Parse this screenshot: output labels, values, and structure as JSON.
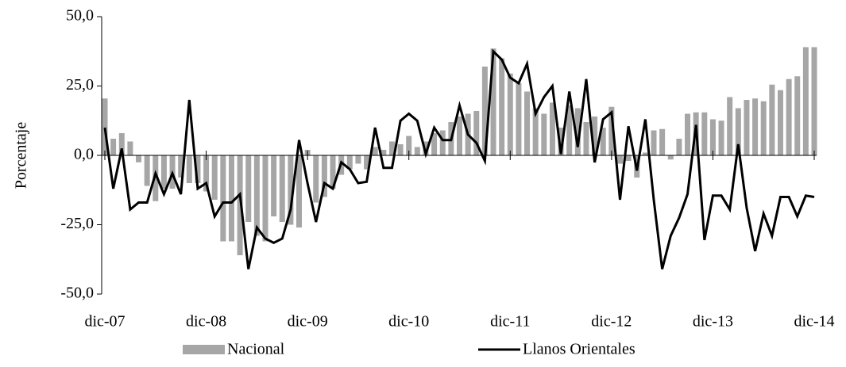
{
  "chart_data": {
    "type": "bar_line",
    "y_label": "Porcentaje",
    "categories": [
      "dic-07",
      null,
      null,
      null,
      null,
      null,
      null,
      null,
      null,
      null,
      null,
      null,
      "dic-08",
      null,
      null,
      null,
      null,
      null,
      null,
      null,
      null,
      null,
      null,
      null,
      "dic-09",
      null,
      null,
      null,
      null,
      null,
      null,
      null,
      null,
      null,
      null,
      null,
      "dic-10",
      null,
      null,
      null,
      null,
      null,
      null,
      null,
      null,
      null,
      null,
      null,
      "dic-11",
      null,
      null,
      null,
      null,
      null,
      null,
      null,
      null,
      null,
      null,
      null,
      "dic-12",
      null,
      null,
      null,
      null,
      null,
      null,
      null,
      null,
      null,
      null,
      null,
      "dic-13",
      null,
      null,
      null,
      null,
      null,
      null,
      null,
      null,
      null,
      null,
      null,
      "dic-14"
    ],
    "series": [
      {
        "name": "Nacional",
        "type": "bar",
        "color": "#a6a6a6",
        "values": [
          20.5,
          6,
          8,
          5,
          -2.5,
          -11,
          -16.5,
          -12,
          -12,
          -8,
          -10,
          -10,
          -13,
          -16,
          -31,
          -31,
          -36,
          -24,
          -29,
          -31,
          -22,
          -24,
          -25,
          -26,
          2,
          -17,
          -15,
          -12,
          -7,
          -5,
          -3,
          -5,
          3,
          2,
          5,
          4,
          7,
          3,
          5,
          8,
          9,
          12,
          14,
          15,
          16,
          32,
          38.5,
          35,
          29.5,
          26,
          23,
          17,
          15,
          19,
          10,
          18,
          17,
          12,
          14,
          10,
          17.5,
          -3,
          -2,
          -8,
          1,
          9,
          9.5,
          -1.5,
          6,
          15,
          15.5,
          15.5,
          13,
          12.5,
          21,
          17,
          20,
          20.5,
          19.5,
          25.5,
          23.5,
          27.5,
          28.5,
          39,
          39
        ]
      },
      {
        "name": "Llanos Orientales",
        "type": "line",
        "color": "#000000",
        "values": [
          10,
          -12,
          2.5,
          -19.5,
          -17,
          -17,
          -6.5,
          -14,
          -6.5,
          -14,
          20,
          -12,
          -10,
          -22,
          -17,
          -17,
          -14,
          -41,
          -26,
          -30,
          -31.5,
          -30,
          -19.5,
          5.5,
          -10,
          -24,
          -10,
          -12,
          -2.5,
          -5,
          -10,
          -9.5,
          10,
          -4.5,
          -4.5,
          12.5,
          15,
          12.5,
          0.5,
          10,
          5.5,
          5.5,
          18,
          7.5,
          4.5,
          -2,
          37.5,
          34.5,
          28,
          26,
          33,
          15,
          21,
          25,
          0.5,
          23,
          3,
          27.5,
          -2.5,
          13,
          15.5,
          -16,
          10.5,
          -5.5,
          13,
          -16,
          -41,
          -29,
          -22.5,
          -14,
          11,
          -30.5,
          -14.5,
          -14.5,
          -19.5,
          4,
          -19,
          -34.5,
          -21,
          -29,
          -15,
          -15,
          -22,
          -14.5,
          -15
        ]
      }
    ],
    "ylim": [
      -50,
      50
    ],
    "yticks": [
      {
        "value": -50,
        "label": "-50,0"
      },
      {
        "value": -25,
        "label": "-25,0"
      },
      {
        "value": 0,
        "label": "0,0"
      },
      {
        "value": 25,
        "label": "25,0"
      },
      {
        "value": 50,
        "label": "50,0"
      }
    ]
  }
}
